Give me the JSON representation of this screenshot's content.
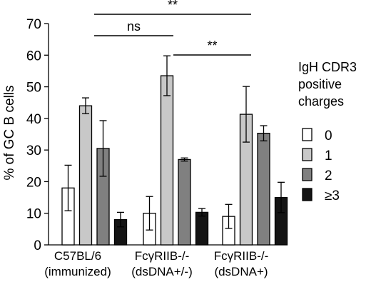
{
  "chart_data": {
    "type": "bar",
    "ylabel": "% of GC B cells",
    "ylim": [
      0,
      70
    ],
    "yticks": [
      0,
      10,
      20,
      30,
      40,
      50,
      60,
      70
    ],
    "categories": [
      {
        "line1": "C57BL/6",
        "line2": "(immunized)"
      },
      {
        "line1": "FcγRIIB-/-",
        "line2": "(dsDNA+/-)"
      },
      {
        "line1": "FcγRIIB-/-",
        "line2": "(dsDNA+)"
      }
    ],
    "legend_title": [
      "IgH CDR3",
      "positive",
      "charges"
    ],
    "legend_position": "right",
    "grid": false,
    "series": [
      {
        "name": "0",
        "color": "#ffffff",
        "values": [
          18,
          10,
          9
        ],
        "errors": [
          7.2,
          5.3,
          3.8
        ]
      },
      {
        "name": "1",
        "color": "#c8c8c8",
        "values": [
          44,
          53.5,
          41.3
        ],
        "errors": [
          2.5,
          6.3,
          8.8
        ]
      },
      {
        "name": "2",
        "color": "#808080",
        "values": [
          30.5,
          27,
          35.3
        ],
        "errors": [
          8.8,
          0.5,
          2.4
        ]
      },
      {
        "name": "≥3",
        "color": "#141414",
        "values": [
          8,
          10.3,
          15
        ],
        "errors": [
          2.3,
          1.2,
          4.8
        ]
      }
    ],
    "significance": [
      {
        "label": "**",
        "from_group": 0,
        "to_group": 2,
        "level": 68
      },
      {
        "label": "ns",
        "from_group": 0,
        "to_group": 1,
        "level": 58
      },
      {
        "label": "**",
        "from_group": 1,
        "to_group": 2,
        "level": 50
      }
    ]
  }
}
